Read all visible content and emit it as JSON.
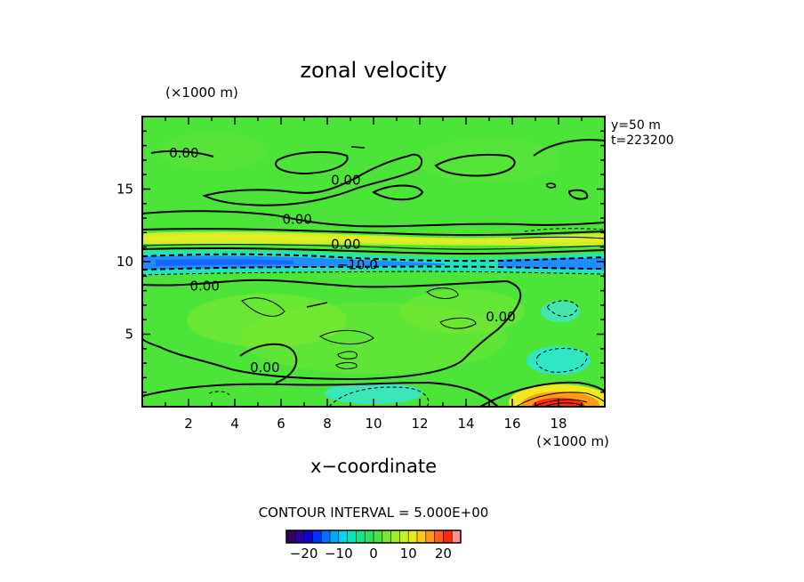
{
  "chart_data": {
    "type": "heatmap",
    "title": "zonal velocity",
    "xlabel": "x−coordinate",
    "ylabel": "",
    "x_unit": "(×1000 m)",
    "y_unit": "(×1000 m)",
    "xlim": [
      0,
      20
    ],
    "ylim": [
      0,
      20
    ],
    "x_ticks": [
      2,
      4,
      6,
      8,
      10,
      12,
      14,
      16,
      18
    ],
    "y_ticks": [
      5,
      10,
      15
    ],
    "info_lines": [
      "y=50  m",
      "t=223200"
    ],
    "contour_interval": "CONTOUR INTERVAL = 5.000E+00",
    "contour_labels": [
      {
        "text": "0.00",
        "x": 1.8,
        "y": 17.5
      },
      {
        "text": "0.00",
        "x": 8.8,
        "y": 15.6
      },
      {
        "text": "0.00",
        "x": 6.7,
        "y": 12.9
      },
      {
        "text": "0.00",
        "x": 8.8,
        "y": 11.2
      },
      {
        "text": "−10.0",
        "x": 9.3,
        "y": 9.8
      },
      {
        "text": "0.00",
        "x": 2.7,
        "y": 8.3
      },
      {
        "text": "0.00",
        "x": 15.5,
        "y": 6.2
      },
      {
        "text": "0.00",
        "x": 5.3,
        "y": 2.7
      }
    ],
    "colorbar": {
      "min": -25,
      "max": 25,
      "tick_values": [
        -20,
        -10,
        0,
        10,
        20
      ],
      "tick_labels": [
        "−20",
        "−10",
        "0",
        "10",
        "20"
      ]
    }
  }
}
